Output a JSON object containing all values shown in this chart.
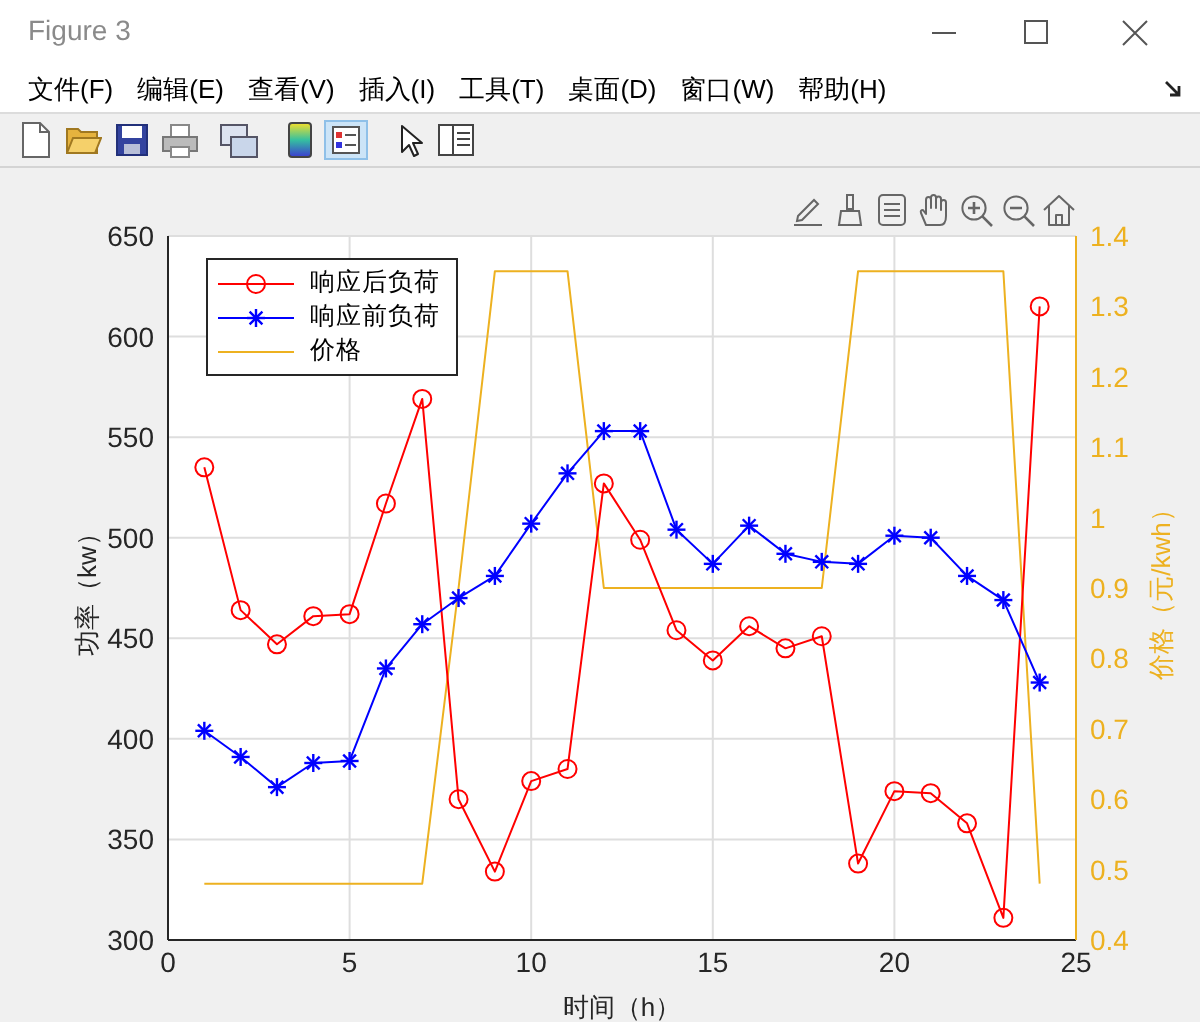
{
  "chart_data": {
    "type": "line",
    "title": "Figure 3",
    "annotations": [
      "文件(F)",
      "编辑(E)",
      "查看(V)",
      "插入(I)",
      "工具(T)",
      "桌面(D)",
      "窗口(W)",
      "帮助(H)"
    ],
    "xlabel": "时间（h）",
    "ylabel": "功率（kw）",
    "y2label": "价格（元/kwh）",
    "x": [
      1,
      2,
      3,
      4,
      5,
      6,
      7,
      8,
      9,
      10,
      11,
      12,
      13,
      14,
      15,
      16,
      17,
      18,
      19,
      20,
      21,
      22,
      23,
      24
    ],
    "series": [
      {
        "name": "响应后负荷",
        "color": "#ff0000",
        "marker": "circle",
        "values": [
          535,
          464,
          447,
          461,
          462,
          517,
          569,
          370,
          334,
          379,
          385,
          527,
          499,
          454,
          439,
          456,
          445,
          451,
          338,
          374,
          373,
          358,
          311,
          615
        ]
      },
      {
        "name": "响应前负荷",
        "color": "#0000ff",
        "marker": "cross",
        "values": [
          404,
          391,
          376,
          388,
          389,
          435,
          457,
          470,
          481,
          507,
          532,
          553,
          553,
          504,
          487,
          506,
          492,
          488,
          487,
          501,
          500,
          481,
          469,
          428
        ]
      },
      {
        "name": "价格",
        "color": "#edb120",
        "axis": "y2",
        "values": [
          0.48,
          0.48,
          0.48,
          0.48,
          0.48,
          0.48,
          0.48,
          0.9,
          1.35,
          1.35,
          1.35,
          0.9,
          0.9,
          0.9,
          0.9,
          0.9,
          0.9,
          0.9,
          1.35,
          1.35,
          1.35,
          1.35,
          1.35,
          0.48
        ]
      }
    ],
    "xlim": [
      0,
      25
    ],
    "xticks": [
      0,
      5,
      10,
      15,
      20,
      25
    ],
    "ylim": [
      300,
      650
    ],
    "yticks": [
      300,
      350,
      400,
      450,
      500,
      550,
      600,
      650
    ],
    "y2lim": [
      0.4,
      1.4
    ],
    "y2ticks": [
      0.4,
      0.5,
      0.6,
      0.7,
      0.8,
      0.9,
      1,
      1.1,
      1.2,
      1.3,
      1.4
    ],
    "grid": true,
    "legend": "top left",
    "line_style": "solid"
  }
}
